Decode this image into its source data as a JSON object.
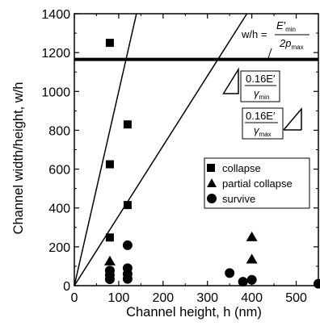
{
  "chart_data": {
    "type": "scatter",
    "xlabel": "Channel height, h (nm)",
    "ylabel": "Channel width/height, w/h",
    "xlim": [
      0,
      550
    ],
    "ylim": [
      0,
      1400
    ],
    "xticks": [
      "0",
      "100",
      "200",
      "300",
      "400",
      "500"
    ],
    "yticks": [
      "0",
      "200",
      "400",
      "600",
      "800",
      "1000",
      "1200",
      "1400"
    ],
    "grid": false,
    "legend_position": "right",
    "series": [
      {
        "name": "collapse",
        "marker": "square",
        "points": [
          [
            80,
            1250
          ],
          [
            120,
            830
          ],
          [
            80,
            625
          ],
          [
            120,
            415
          ],
          [
            80,
            248
          ]
        ]
      },
      {
        "name": "partial collapse",
        "marker": "triangle",
        "points": [
          [
            80,
            125
          ],
          [
            400,
            250
          ],
          [
            400,
            135
          ]
        ]
      },
      {
        "name": "survive",
        "marker": "circle",
        "points": [
          [
            80,
            78
          ],
          [
            80,
            55
          ],
          [
            80,
            33
          ],
          [
            120,
            208
          ],
          [
            120,
            90
          ],
          [
            120,
            60
          ],
          [
            120,
            35
          ],
          [
            350,
            65
          ],
          [
            380,
            20
          ],
          [
            400,
            30
          ],
          [
            550,
            10
          ]
        ]
      }
    ],
    "lines": [
      {
        "kind": "horizontal",
        "y": 1165
      },
      {
        "kind": "through-origin",
        "slope": 10.0
      },
      {
        "kind": "through-origin",
        "slope": 3.6
      }
    ],
    "annotations": {
      "limit_lhs": "w/h =",
      "limit_num": "E′",
      "limit_num_sub": "min",
      "limit_den": "2p",
      "limit_den_sub": "max",
      "slope_upper_num": "0.16E′",
      "slope_upper_den": "γ",
      "slope_upper_den_sub": "min",
      "slope_lower_num": "0.16E′",
      "slope_lower_den": "γ",
      "slope_lower_den_sub": "max"
    }
  }
}
